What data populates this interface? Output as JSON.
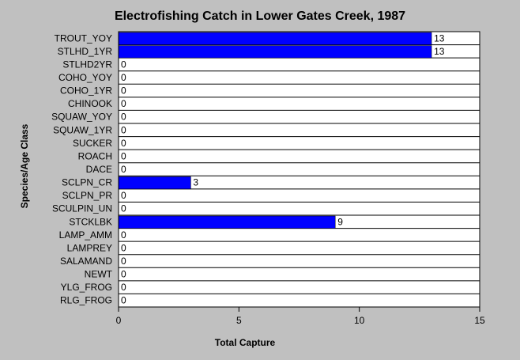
{
  "chart_data": {
    "type": "bar",
    "orientation": "horizontal",
    "title": "Electrofishing Catch in Lower Gates Creek, 1987",
    "xlabel": "Total Capture",
    "ylabel": "Species/Age Class",
    "categories": [
      "TROUT_YOY",
      "STLHD_1YR",
      "STLHD2YR",
      "COHO_YOY",
      "COHO_1YR",
      "CHINOOK",
      "SQUAW_YOY",
      "SQUAW_1YR",
      "SUCKER",
      "ROACH",
      "DACE",
      "SCLPN_CR",
      "SCLPN_PR",
      "SCULPIN_UN",
      "STCKLBK",
      "LAMP_AMM",
      "LAMPREY",
      "SALAMAND",
      "NEWT",
      "YLG_FROG",
      "RLG_FROG"
    ],
    "values": [
      13,
      13,
      0,
      0,
      0,
      0,
      0,
      0,
      0,
      0,
      0,
      3,
      0,
      0,
      9,
      0,
      0,
      0,
      0,
      0,
      0
    ],
    "xlim": [
      0,
      15
    ],
    "xticks": [
      0,
      5,
      10,
      15
    ],
    "grid": "horizontal",
    "data_labels": true,
    "colors": {
      "bar": "#0000ff",
      "plot_bg": "#ffffff",
      "background": "#c0c0c0"
    }
  }
}
